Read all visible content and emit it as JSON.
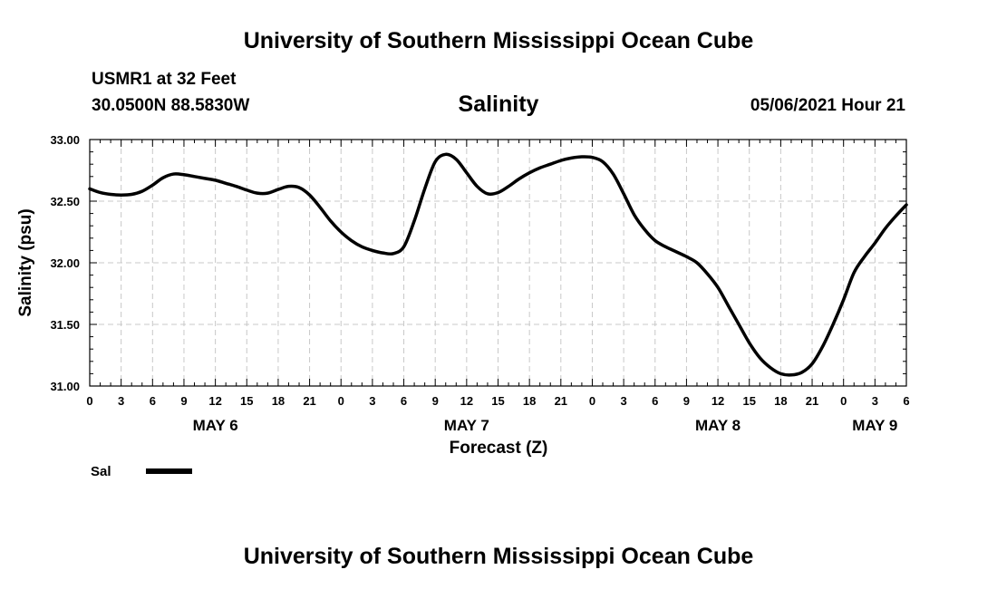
{
  "header": {
    "top_title": "University of Southern Mississippi Ocean Cube",
    "station": "USMR1 at 32 Feet",
    "coords": "30.0500N  88.5830W",
    "chart_title": "Salinity",
    "date": "05/06/2021 Hour 21"
  },
  "footer": {
    "bottom_title": "University of Southern Mississippi Ocean Cube"
  },
  "chart_data": {
    "type": "line",
    "title": "Salinity",
    "xlabel": "Forecast (Z)",
    "ylabel": "Salinity (psu)",
    "ylim": [
      31.0,
      33.0
    ],
    "y_ticks": [
      "31.00",
      "31.50",
      "32.00",
      "32.50",
      "33.00"
    ],
    "xlim": [
      0,
      78
    ],
    "x_tick_labels": [
      "0",
      "3",
      "6",
      "9",
      "12",
      "15",
      "18",
      "21",
      "0",
      "3",
      "6",
      "9",
      "12",
      "15",
      "18",
      "21",
      "0",
      "3",
      "6",
      "9",
      "12",
      "15",
      "18",
      "21",
      "0",
      "3",
      "6"
    ],
    "day_labels": [
      {
        "label": "MAY 6",
        "hour": 12
      },
      {
        "label": "MAY 7",
        "hour": 36
      },
      {
        "label": "MAY 8",
        "hour": 60
      },
      {
        "label": "MAY 9",
        "hour": 75
      }
    ],
    "grid": true,
    "legend_position": "bottom-left",
    "line_color": "#000000",
    "series": [
      {
        "name": "Sal",
        "x": [
          0,
          1,
          2,
          3,
          4,
          5,
          6,
          7,
          8,
          9,
          10,
          11,
          12,
          13,
          14,
          15,
          16,
          17,
          18,
          19,
          20,
          21,
          22,
          23,
          24,
          25,
          26,
          27,
          28,
          29,
          30,
          31,
          32,
          33,
          34,
          35,
          36,
          37,
          38,
          39,
          40,
          41,
          42,
          43,
          44,
          45,
          46,
          47,
          48,
          49,
          50,
          51,
          52,
          53,
          54,
          55,
          56,
          57,
          58,
          59,
          60,
          61,
          62,
          63,
          64,
          65,
          66,
          67,
          68,
          69,
          70,
          71,
          72,
          73,
          74,
          75,
          76,
          77,
          78
        ],
        "values": [
          32.6,
          32.57,
          32.555,
          32.55,
          32.555,
          32.58,
          32.63,
          32.69,
          32.72,
          32.715,
          32.7,
          32.685,
          32.67,
          32.645,
          32.62,
          32.59,
          32.565,
          32.565,
          32.595,
          32.62,
          32.61,
          32.55,
          32.45,
          32.34,
          32.25,
          32.18,
          32.13,
          32.1,
          32.08,
          32.075,
          32.13,
          32.34,
          32.6,
          32.82,
          32.88,
          32.84,
          32.73,
          32.62,
          32.56,
          32.57,
          32.62,
          32.68,
          32.73,
          32.77,
          32.8,
          32.83,
          32.85,
          32.86,
          32.855,
          32.82,
          32.72,
          32.56,
          32.39,
          32.27,
          32.18,
          32.13,
          32.09,
          32.05,
          32.0,
          31.91,
          31.8,
          31.65,
          31.5,
          31.35,
          31.23,
          31.15,
          31.1,
          31.09,
          31.11,
          31.18,
          31.32,
          31.5,
          31.7,
          31.92,
          32.05,
          32.16,
          32.28,
          32.38,
          32.47
        ]
      }
    ]
  }
}
